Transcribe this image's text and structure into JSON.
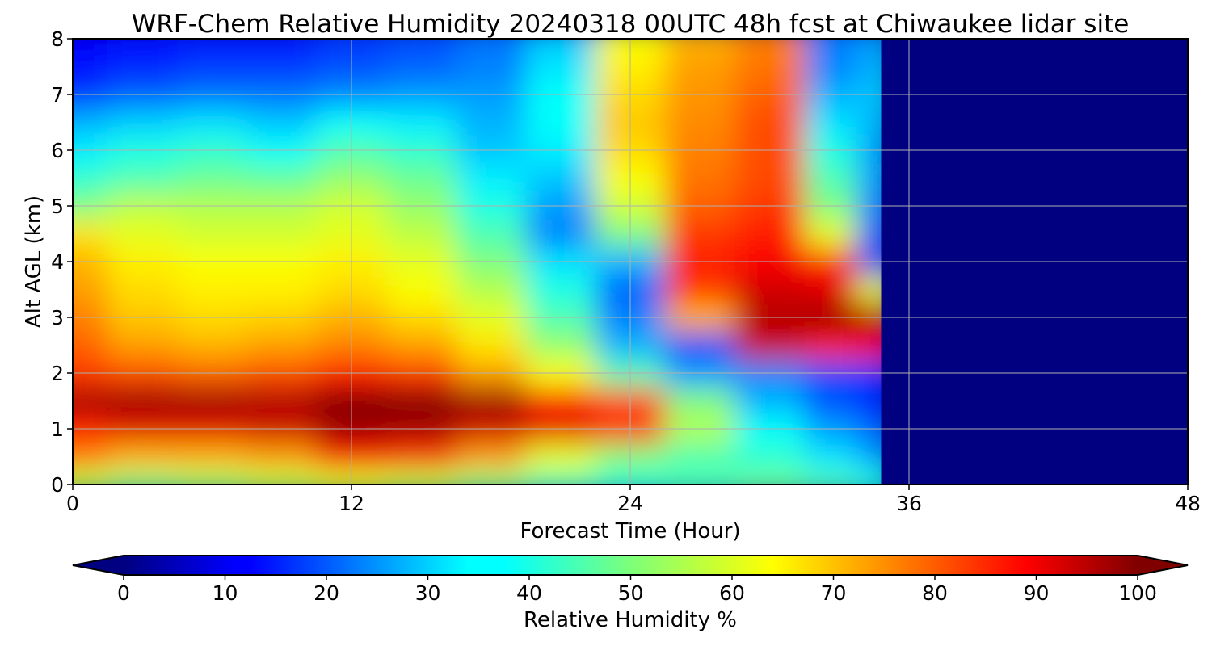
{
  "chart_data": {
    "type": "heatmap",
    "title": "WRF-Chem Relative Humidity 20240318 00UTC 48h fcst at Chiwaukee lidar site",
    "xlabel": "Forecast Time (Hour)",
    "ylabel": "Alt AGL (km)",
    "xlim": [
      0,
      48
    ],
    "ylim": [
      0,
      8
    ],
    "x_ticks": [
      0,
      12,
      24,
      36,
      48
    ],
    "y_ticks": [
      0,
      1,
      2,
      3,
      4,
      5,
      6,
      7,
      8
    ],
    "grid": true,
    "colormap": "jet",
    "colorbar": {
      "label": "Relative Humidity %",
      "range": [
        0,
        100
      ],
      "ticks": [
        0,
        10,
        20,
        30,
        40,
        50,
        60,
        70,
        80,
        90,
        100
      ],
      "extend": "both",
      "position": "bottom"
    },
    "x": [
      0,
      3,
      6,
      9,
      12,
      15,
      18,
      21,
      24,
      27,
      30,
      33,
      34.5,
      36,
      39,
      42,
      45,
      48
    ],
    "y": [
      0,
      0.5,
      1,
      1.5,
      2,
      2.5,
      3,
      3.5,
      4,
      4.5,
      5,
      5.5,
      6,
      6.5,
      7,
      7.5,
      8
    ],
    "values": [
      [
        55,
        50,
        52,
        55,
        58,
        55,
        50,
        45,
        42,
        45,
        48,
        45,
        40,
        0,
        0,
        0,
        0,
        0
      ],
      [
        75,
        70,
        70,
        72,
        85,
        82,
        72,
        60,
        50,
        45,
        42,
        35,
        28,
        0,
        0,
        0,
        0,
        0
      ],
      [
        85,
        90,
        90,
        92,
        97,
        96,
        92,
        90,
        85,
        55,
        38,
        28,
        22,
        0,
        0,
        0,
        0,
        0
      ],
      [
        97,
        98,
        98,
        96,
        100,
        100,
        98,
        88,
        80,
        50,
        30,
        20,
        15,
        0,
        0,
        0,
        0,
        0
      ],
      [
        82,
        80,
        78,
        80,
        85,
        82,
        72,
        62,
        45,
        28,
        25,
        20,
        18,
        0,
        0,
        0,
        0,
        0
      ],
      [
        78,
        72,
        70,
        72,
        75,
        72,
        65,
        52,
        30,
        18,
        92,
        85,
        88,
        0,
        0,
        0,
        0,
        0
      ],
      [
        75,
        68,
        66,
        67,
        70,
        66,
        60,
        45,
        25,
        70,
        95,
        97,
        95,
        0,
        0,
        0,
        0,
        0
      ],
      [
        72,
        66,
        64,
        64,
        66,
        62,
        55,
        40,
        22,
        82,
        92,
        90,
        60,
        0,
        0,
        0,
        0,
        0
      ],
      [
        70,
        64,
        62,
        62,
        64,
        60,
        50,
        35,
        30,
        85,
        88,
        85,
        20,
        0,
        0,
        0,
        0,
        0
      ],
      [
        65,
        60,
        58,
        58,
        60,
        56,
        45,
        25,
        50,
        82,
        85,
        60,
        22,
        0,
        0,
        0,
        0,
        0
      ],
      [
        50,
        56,
        55,
        55,
        58,
        52,
        40,
        28,
        58,
        78,
        82,
        50,
        25,
        0,
        0,
        0,
        0,
        0
      ],
      [
        42,
        45,
        48,
        47,
        52,
        48,
        36,
        32,
        62,
        76,
        80,
        45,
        28,
        0,
        0,
        0,
        0,
        0
      ],
      [
        36,
        40,
        42,
        38,
        45,
        42,
        32,
        36,
        66,
        75,
        80,
        40,
        28,
        0,
        0,
        0,
        0,
        0
      ],
      [
        30,
        33,
        35,
        32,
        38,
        36,
        30,
        38,
        68,
        74,
        80,
        35,
        30,
        0,
        0,
        0,
        0,
        0
      ],
      [
        18,
        22,
        24,
        24,
        26,
        28,
        28,
        38,
        66,
        73,
        78,
        30,
        32,
        0,
        0,
        0,
        0,
        0
      ],
      [
        14,
        16,
        18,
        18,
        20,
        22,
        25,
        35,
        64,
        72,
        76,
        25,
        30,
        0,
        0,
        0,
        0,
        0
      ],
      [
        12,
        14,
        15,
        15,
        18,
        20,
        24,
        32,
        62,
        70,
        75,
        25,
        28,
        0,
        0,
        0,
        0,
        0
      ]
    ]
  }
}
